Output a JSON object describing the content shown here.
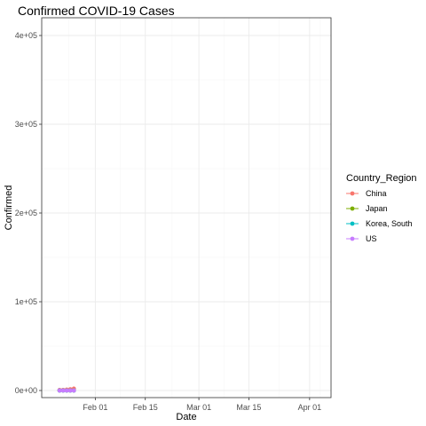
{
  "chart_data": {
    "type": "line",
    "title": "Confirmed COVID-19 Cases",
    "xlabel": "Date",
    "ylabel": "Confirmed",
    "x_tick_labels": [
      "Feb 01",
      "Feb 15",
      "Mar 01",
      "Mar 15",
      "Apr 01"
    ],
    "x_tick_dates": [
      "2020-02-01",
      "2020-02-15",
      "2020-03-01",
      "2020-03-15",
      "2020-04-01"
    ],
    "xlim": [
      "2020-01-17",
      "2020-04-07"
    ],
    "y_tick_labels": [
      "0e+00",
      "1e+05",
      "2e+05",
      "3e+05",
      "4e+05"
    ],
    "y_tick_values": [
      0,
      100000,
      200000,
      300000,
      400000
    ],
    "ylim": [
      -8000,
      420000
    ],
    "grid": true,
    "legend_title": "Country_Region",
    "legend_position": "right",
    "x": [
      "2020-01-22",
      "2020-01-23",
      "2020-01-24",
      "2020-01-25",
      "2020-01-26"
    ],
    "series": [
      {
        "name": "China",
        "color": "#F8766D",
        "values": [
          548,
          643,
          920,
          1406,
          2075
        ]
      },
      {
        "name": "Japan",
        "color": "#7CAE00",
        "values": [
          2,
          1,
          2,
          2,
          4
        ]
      },
      {
        "name": "Korea, South",
        "color": "#00BFC4",
        "values": [
          1,
          1,
          2,
          2,
          3
        ]
      },
      {
        "name": "US",
        "color": "#C77CFF",
        "values": [
          1,
          1,
          2,
          2,
          5
        ]
      }
    ]
  }
}
